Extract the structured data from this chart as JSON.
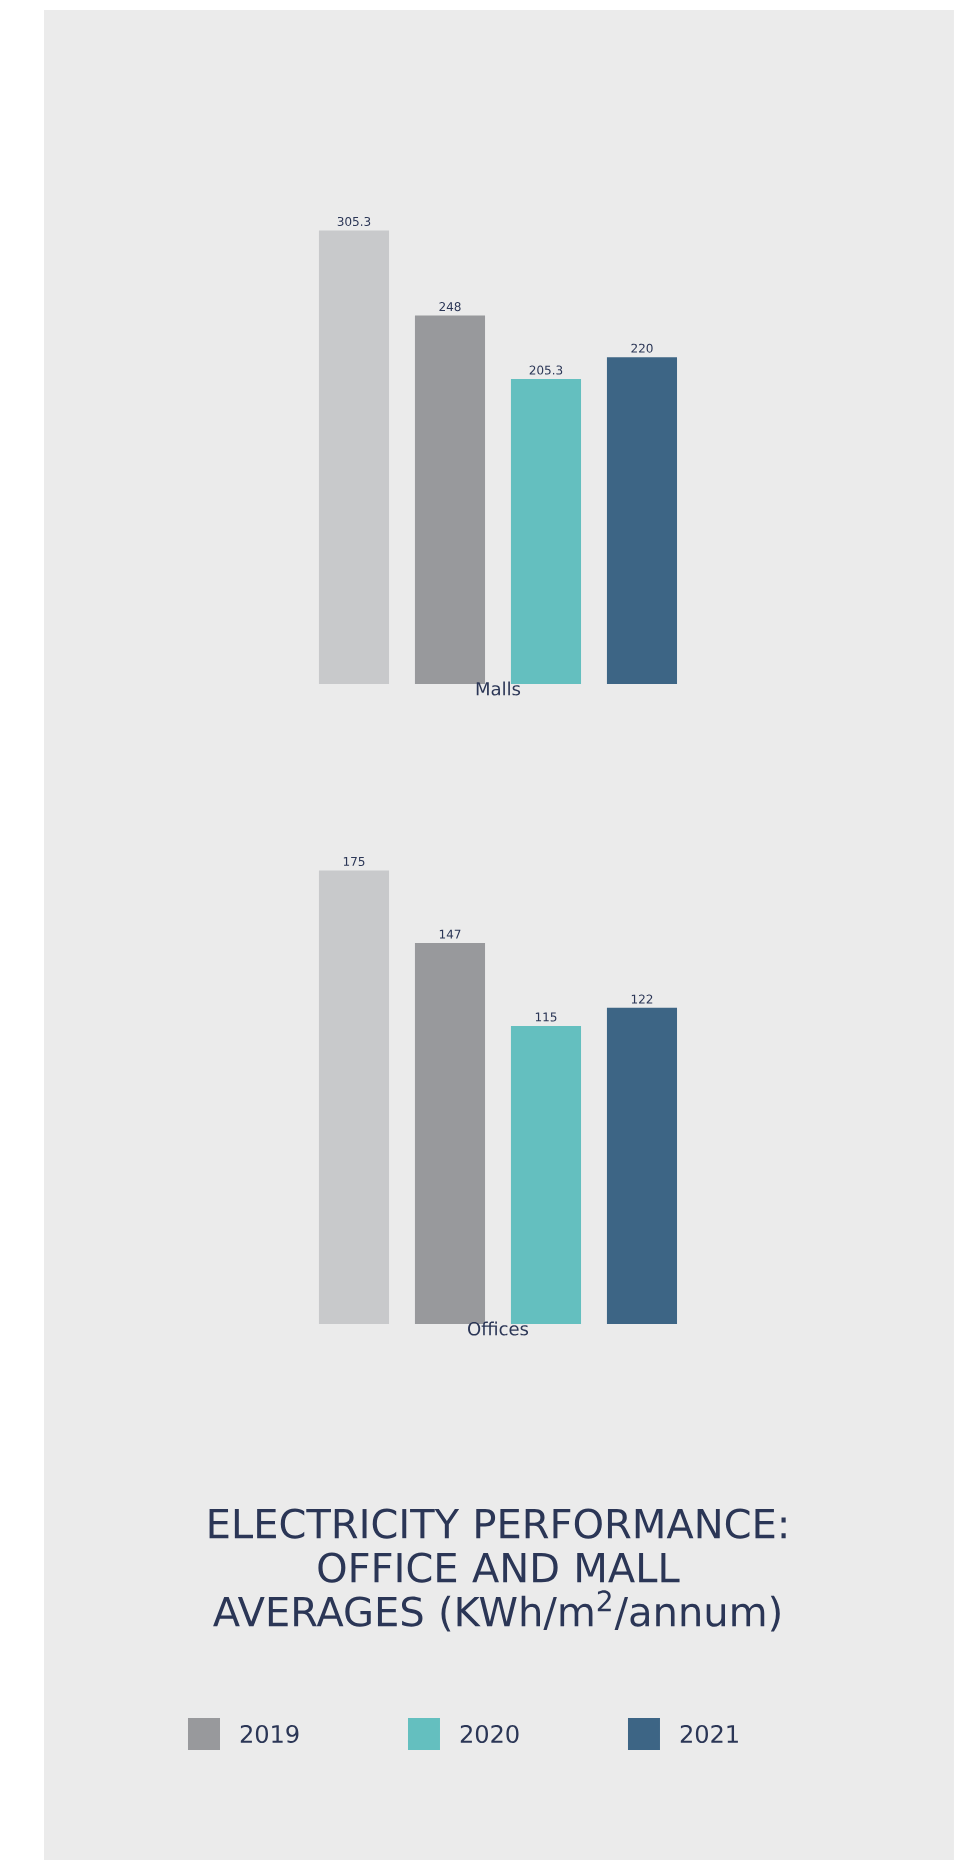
{
  "chart_data": [
    {
      "type": "bar",
      "xlabel": "Malls",
      "categories": [
        null
      ],
      "data_labels": true,
      "legend": false,
      "series": [
        {
          "color": "#c8c9cb",
          "values": [
            305.3
          ]
        },
        {
          "color": "#98999c",
          "values": [
            248
          ]
        },
        {
          "color": "#64bfbf",
          "values": [
            205.3
          ]
        },
        {
          "color": "#3d6585",
          "values": [
            220
          ]
        }
      ]
    },
    {
      "type": "bar",
      "xlabel": "Offices",
      "categories": [
        null
      ],
      "data_labels": true,
      "legend": "bottom",
      "title": "ELECTRICITY PERFORMANCE: OFFICE AND MALL AVERAGES (KWh/m$^{2}$/annum)",
      "series": [
        {
          "color": "#c8c9cb",
          "values": [
            175
          ]
        },
        {
          "name": "2019",
          "color": "#98999c",
          "values": [
            147
          ]
        },
        {
          "name": "2020",
          "color": "#64bfbf",
          "values": [
            115
          ]
        },
        {
          "name": "2021",
          "color": "#3d6585",
          "values": [
            122
          ]
        }
      ]
    }
  ]
}
